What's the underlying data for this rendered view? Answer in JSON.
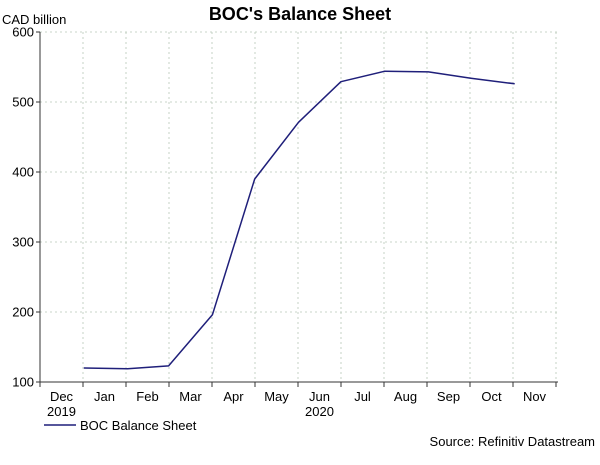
{
  "chart_data": {
    "type": "line",
    "title": "BOC's Balance Sheet",
    "ylabel": "CAD billion",
    "xlabel": "",
    "ylim": [
      100,
      600
    ],
    "yticks": [
      100,
      200,
      300,
      400,
      500,
      600
    ],
    "x_ticks": [
      "Dec",
      "Jan",
      "Feb",
      "Mar",
      "Apr",
      "May",
      "Jun",
      "Jul",
      "Aug",
      "Sep",
      "Oct",
      "Nov"
    ],
    "year_labels": [
      {
        "text": "2019",
        "under": "Dec"
      },
      {
        "text": "2020",
        "under": "Jun"
      }
    ],
    "grid": true,
    "legend_position": "bottom-left",
    "source": "Source: Refinitiv Datastream",
    "colors": {
      "series": "#1f1f7a",
      "grid": "#b8c8b8",
      "axis": "#333333"
    },
    "series": [
      {
        "name": "BOC Balance Sheet",
        "points": [
          {
            "x": "2020-01-01",
            "y": 120
          },
          {
            "x": "2020-02-01",
            "y": 119
          },
          {
            "x": "2020-03-01",
            "y": 123
          },
          {
            "x": "2020-04-01",
            "y": 196
          },
          {
            "x": "2020-05-01",
            "y": 390
          },
          {
            "x": "2020-06-01",
            "y": 471
          },
          {
            "x": "2020-07-01",
            "y": 529
          },
          {
            "x": "2020-08-01",
            "y": 544
          },
          {
            "x": "2020-09-01",
            "y": 543
          },
          {
            "x": "2020-10-01",
            "y": 534
          },
          {
            "x": "2020-11-01",
            "y": 526
          }
        ]
      }
    ]
  }
}
